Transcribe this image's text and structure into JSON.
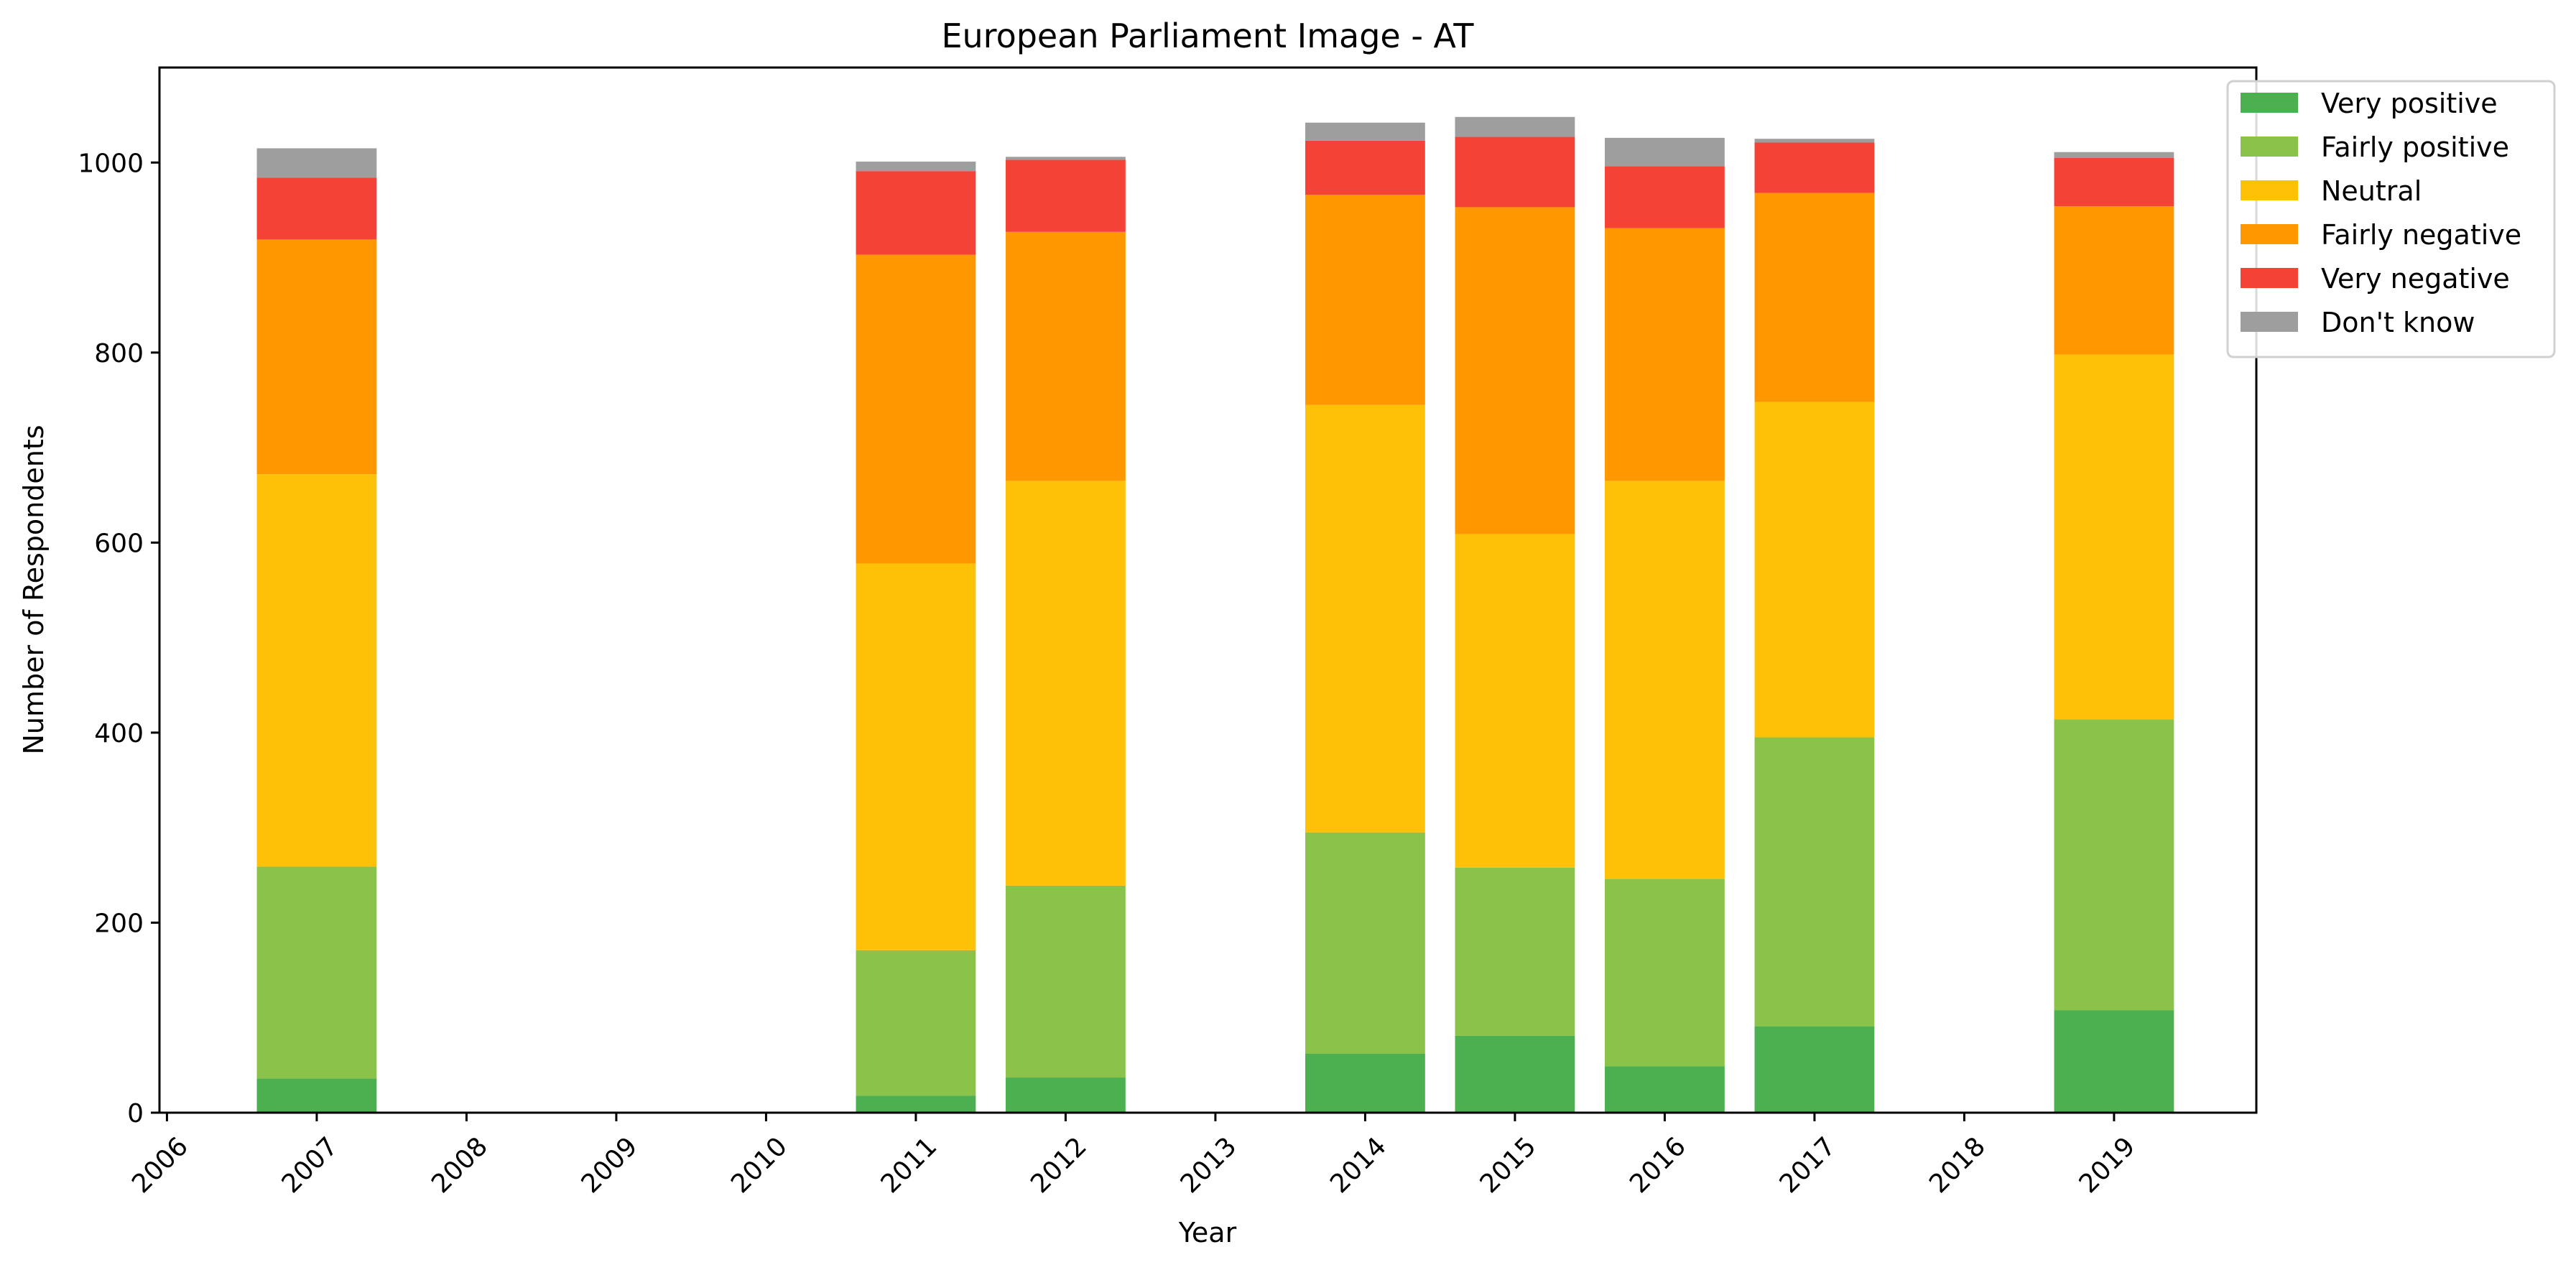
{
  "chart_data": {
    "type": "bar",
    "stacked": true,
    "title": "European Parliament Image - AT",
    "xlabel": "Year",
    "ylabel": "Number of Respondents",
    "xlim": [
      2005.95,
      2019.95
    ],
    "ylim": [
      0,
      1100
    ],
    "x_ticks": [
      2006,
      2007,
      2008,
      2009,
      2010,
      2011,
      2012,
      2013,
      2014,
      2015,
      2016,
      2017,
      2018,
      2019
    ],
    "y_ticks": [
      0,
      200,
      400,
      600,
      800,
      1000
    ],
    "grid": false,
    "legend_position": "top-right",
    "x": [
      2007,
      2011,
      2012,
      2014,
      2015,
      2016,
      2017,
      2019
    ],
    "series": [
      {
        "name": "Very positive",
        "color": "#4caf50",
        "values": [
          36,
          18,
          37,
          62,
          81,
          49,
          91,
          108
        ]
      },
      {
        "name": "Fairly positive",
        "color": "#8bc34a",
        "values": [
          223,
          153,
          202,
          233,
          177,
          197,
          304,
          306
        ]
      },
      {
        "name": "Neutral",
        "color": "#ffc107",
        "values": [
          413,
          407,
          426,
          450,
          351,
          419,
          353,
          384
        ]
      },
      {
        "name": "Fairly negative",
        "color": "#ff9800",
        "values": [
          247,
          325,
          262,
          221,
          344,
          266,
          220,
          156
        ]
      },
      {
        "name": "Very negative",
        "color": "#f44336",
        "values": [
          65,
          88,
          76,
          57,
          74,
          65,
          53,
          51
        ]
      },
      {
        "name": "Don't know",
        "color": "#9e9e9e",
        "values": [
          31,
          10,
          3,
          19,
          21,
          30,
          4,
          6
        ]
      }
    ]
  }
}
